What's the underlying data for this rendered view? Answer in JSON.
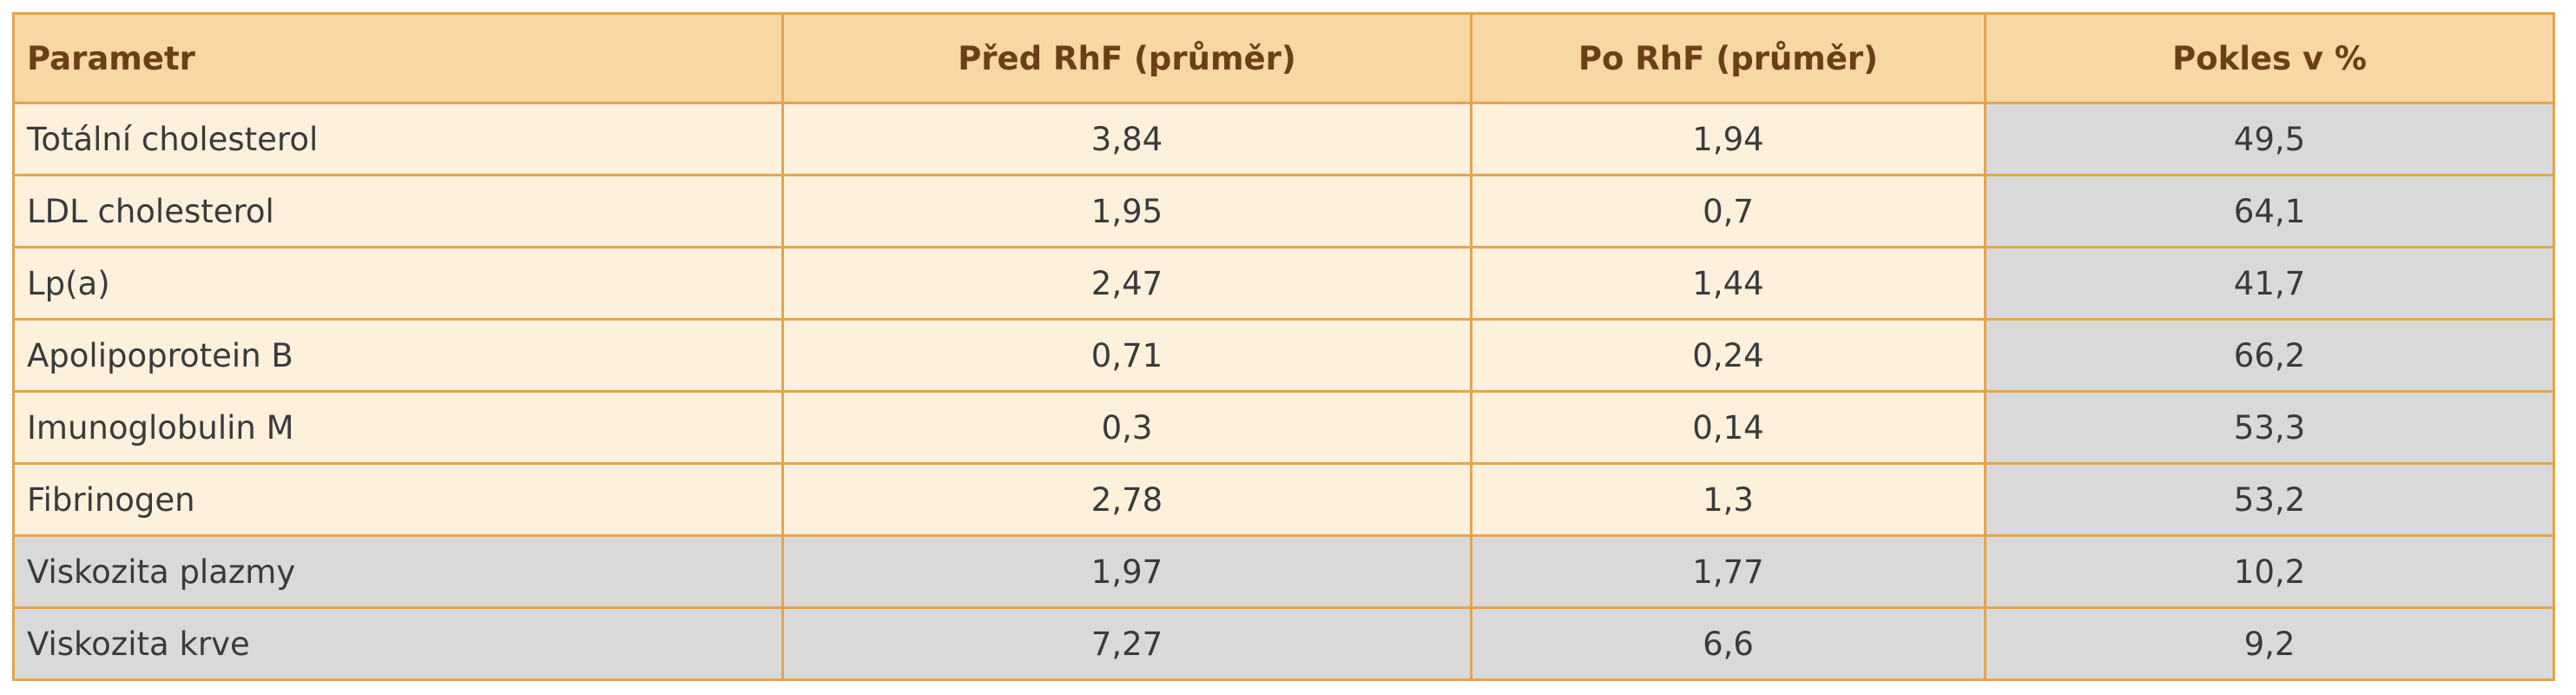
{
  "table": {
    "header": [
      "Parametr",
      "Před RhF (průměr)",
      "Po RhF (průměr)",
      "Pokles v %"
    ],
    "rows": [
      [
        "Totální cholesterol",
        "3,84",
        "1,94",
        "49,5"
      ],
      [
        "LDL cholesterol",
        "1,95",
        "0,7",
        "64,1"
      ],
      [
        "Lp(a)",
        "2,47",
        "1,44",
        "41,7"
      ],
      [
        "Apolipoprotein B",
        "0,71",
        "0,24",
        "66,2"
      ],
      [
        "Imunoglobulin M",
        "0,3",
        "0,14",
        "53,3"
      ],
      [
        "Fibrinogen",
        "2,78",
        "1,3",
        "53,2"
      ],
      [
        "Viskozita plazmy",
        "1,97",
        "1,77",
        "10,2"
      ],
      [
        "Viskozita krve",
        "7,27",
        "6,6",
        "9,2"
      ]
    ]
  }
}
